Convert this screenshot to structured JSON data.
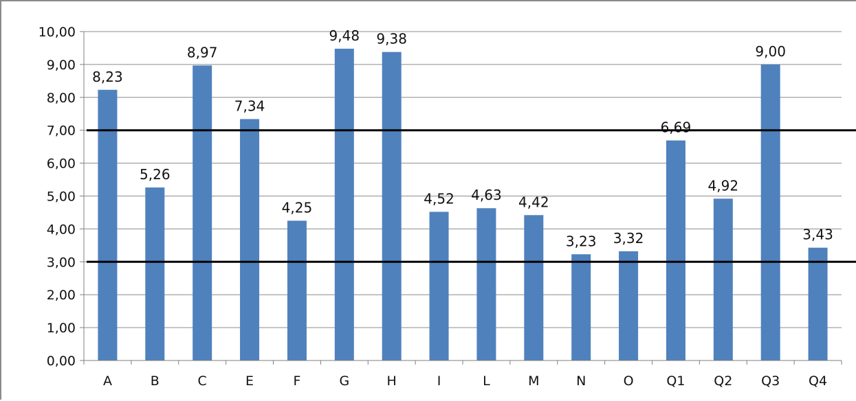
{
  "chart_data": {
    "type": "bar",
    "categories": [
      "A",
      "B",
      "C",
      "E",
      "F",
      "G",
      "H",
      "I",
      "L",
      "M",
      "N",
      "O",
      "Q1",
      "Q2",
      "Q3",
      "Q4"
    ],
    "values": [
      8.23,
      5.26,
      8.97,
      7.34,
      4.25,
      9.48,
      9.38,
      4.52,
      4.63,
      4.42,
      3.23,
      3.32,
      6.69,
      4.92,
      9.0,
      3.43
    ],
    "data_labels": [
      "8,23",
      "5,26",
      "8,97",
      "7,34",
      "4,25",
      "9,48",
      "9,38",
      "4,52",
      "4,63",
      "4,42",
      "3,23",
      "3,32",
      "6,69",
      "4,92",
      "9,00",
      "3,43"
    ],
    "ytick_values": [
      0,
      1,
      2,
      3,
      4,
      5,
      6,
      7,
      8,
      9,
      10
    ],
    "ytick_labels": [
      "0,00",
      "1,00",
      "2,00",
      "3,00",
      "4,00",
      "5,00",
      "6,00",
      "7,00",
      "8,00",
      "9,00",
      "10,00"
    ],
    "ylim": [
      0,
      10
    ],
    "reference_lines": [
      7.0,
      3.0
    ],
    "grid": true,
    "legend": "none",
    "title": "",
    "xlabel": "",
    "ylabel": "",
    "colors": {
      "bar": "#4f81bd",
      "grid": "#8c8c8c",
      "axis": "#7f7f7f",
      "reference_line": "#000000"
    }
  }
}
